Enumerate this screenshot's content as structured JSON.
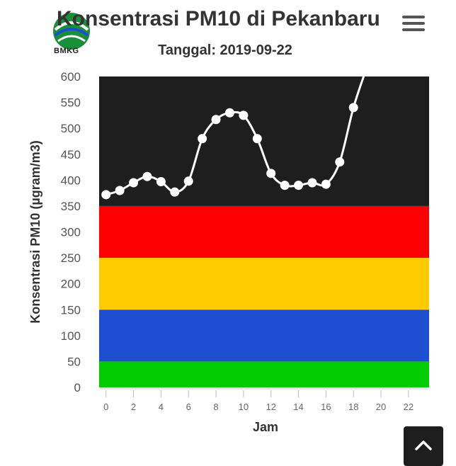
{
  "header": {
    "logo_text": "BMKG",
    "title": "Konsentrasi PM10 di Pekanbaru",
    "subtitle": "Tanggal: 2019-09-22"
  },
  "icons": {
    "menu": "hamburger-menu-icon",
    "scroll_top": "chevron-up-icon"
  },
  "chart_data": {
    "type": "line",
    "title": "Konsentrasi PM10 di Pekanbaru",
    "subtitle": "Tanggal: 2019-09-22",
    "xlabel": "Jam",
    "ylabel": "Konsentrasi PM10 (µgram/m3)",
    "xlim": [
      -0.5,
      23.5
    ],
    "ylim": [
      0,
      600
    ],
    "xticks": [
      0,
      2,
      4,
      6,
      8,
      10,
      12,
      14,
      16,
      18,
      20,
      22
    ],
    "yticks": [
      0,
      50,
      100,
      150,
      200,
      250,
      300,
      350,
      400,
      450,
      500,
      550,
      600
    ],
    "bands": [
      {
        "from": 0,
        "to": 50,
        "color": "#00cc00"
      },
      {
        "from": 50,
        "to": 150,
        "color": "#1e4fd0"
      },
      {
        "from": 150,
        "to": 250,
        "color": "#ffcc00"
      },
      {
        "from": 250,
        "to": 350,
        "color": "#ff0000"
      },
      {
        "from": 350,
        "to": 600,
        "color": "#1e1e1e"
      }
    ],
    "series": [
      {
        "line_color": "#ffffff",
        "x": [
          0,
          1,
          2,
          3,
          4,
          5,
          6,
          7,
          8,
          9,
          10,
          11,
          12,
          13,
          14,
          15,
          16,
          17,
          18,
          19
        ],
        "y": [
          372,
          380,
          395,
          407,
          397,
          377,
          398,
          480,
          517,
          530,
          525,
          480,
          413,
          390,
          390,
          395,
          392,
          435,
          540,
          620
        ]
      }
    ]
  }
}
